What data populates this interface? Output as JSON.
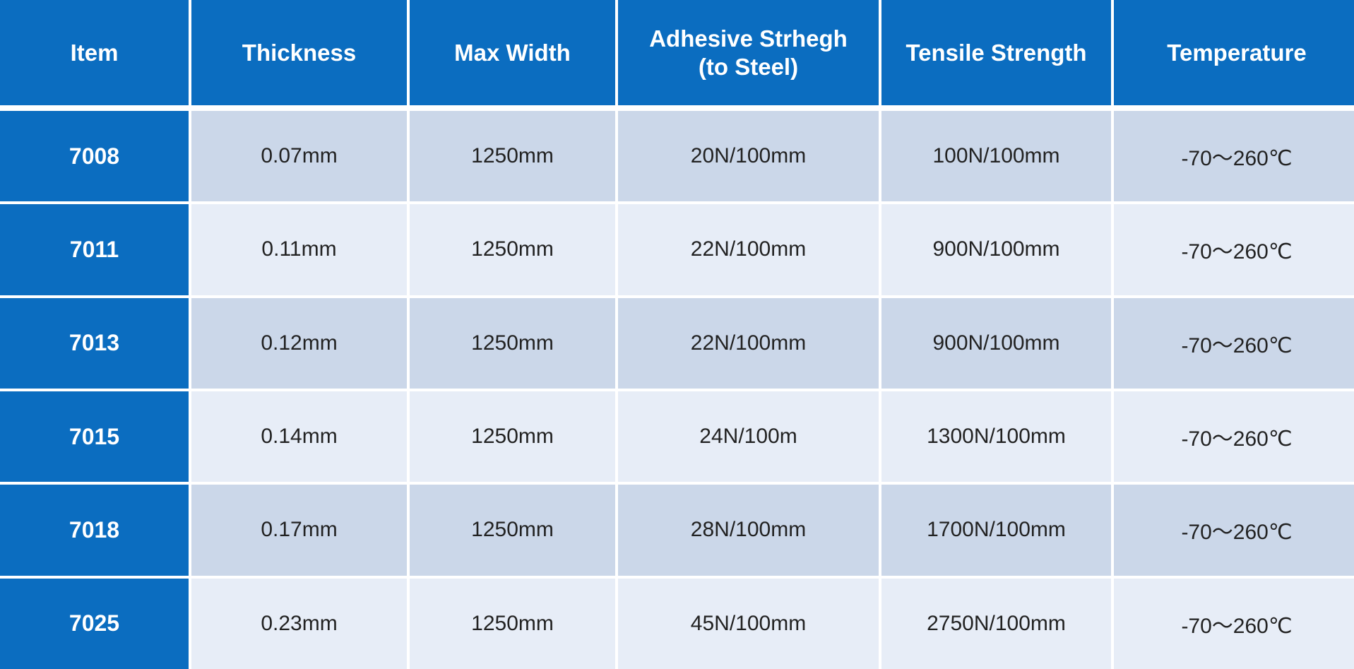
{
  "header": {
    "columns": [
      "Item",
      "Thickness",
      "Max Width",
      "Adhesive Strhegh\n(to Steel)",
      "Tensile Strength",
      "Temperature"
    ]
  },
  "table": {
    "rows": [
      [
        "7008",
        "0.07mm",
        "1250mm",
        "20N/100mm",
        "100N/100mm",
        "-70～260℃"
      ],
      [
        "7011",
        "0.11mm",
        "1250mm",
        "22N/100mm",
        "900N/100mm",
        "-70～260℃"
      ],
      [
        "7013",
        "0.12mm",
        "1250mm",
        "22N/100mm",
        "900N/100mm",
        "-70～260℃"
      ],
      [
        "7015",
        "0.14mm",
        "1250mm",
        "24N/100m",
        "1300N/100mm",
        "-70～260℃"
      ],
      [
        "7018",
        "0.17mm",
        "1250mm",
        "28N/100mm",
        "1700N/100mm",
        "-70～260℃"
      ],
      [
        "7025",
        "0.23mm",
        "1250mm",
        "45N/100mm",
        "2750N/100mm",
        "-70～260℃"
      ]
    ]
  }
}
